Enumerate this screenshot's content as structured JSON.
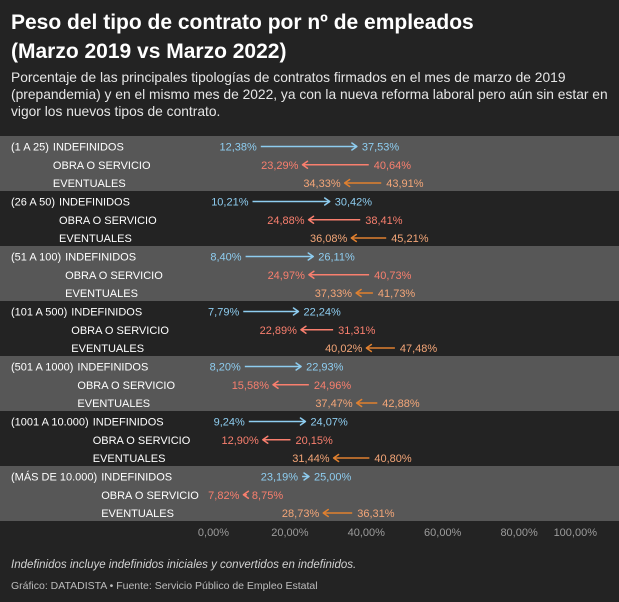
{
  "title": {
    "line1": "Peso del tipo de contrato por nº de empleados",
    "line2": "(Marzo 2019 vs Marzo 2022)"
  },
  "subtitle_lines": [
    "Porcentaje de las principales tipologías de contratos firmados en el mes de marzo de 2019",
    "(prepandemia) y en el mismo mes de 2022, ya con la nueva reforma laboral pero aún sin estar en",
    "vigor los nuevos tipos de contrato."
  ],
  "footnote": "Indefinidos incluye indefinidos iniciales y convertidos en indefinidos.",
  "source": "Gráfico: DATADISTA • Fuente: Servicio Público de Empleo Estatal",
  "colors": {
    "background": "#232323",
    "band": "#575757",
    "arrow": [
      "#8ecdf0",
      "#f97f6e",
      "#e0802f"
    ],
    "text": [
      "#8ecdf0",
      "#f97f6e",
      "#f4a678"
    ]
  },
  "chart_data": {
    "type": "scatter",
    "series": [
      "Marzo 2019",
      "Marzo 2022"
    ],
    "xlim": [
      0,
      100
    ],
    "x_ticks": [
      0,
      20,
      40,
      60,
      80,
      100
    ],
    "groups": [
      {
        "label": "(1 A 25)",
        "rows": [
          {
            "label": "INDEFINIDOS",
            "values": [
              12.38,
              37.53
            ]
          },
          {
            "label": "OBRA O SERVICIO",
            "values": [
              40.64,
              23.29
            ]
          },
          {
            "label": "EVENTUALES",
            "values": [
              43.91,
              34.33
            ]
          }
        ]
      },
      {
        "label": "(26 A 50)",
        "rows": [
          {
            "label": "INDEFINIDOS",
            "values": [
              10.21,
              30.42
            ]
          },
          {
            "label": "OBRA O SERVICIO",
            "values": [
              38.41,
              24.88
            ]
          },
          {
            "label": "EVENTUALES",
            "values": [
              45.21,
              36.08
            ]
          }
        ]
      },
      {
        "label": "(51 A 100)",
        "rows": [
          {
            "label": "INDEFINIDOS",
            "values": [
              8.4,
              26.11
            ]
          },
          {
            "label": "OBRA O SERVICIO",
            "values": [
              40.73,
              24.97
            ]
          },
          {
            "label": "EVENTUALES",
            "values": [
              41.73,
              37.33
            ]
          }
        ]
      },
      {
        "label": "(101 A 500)",
        "rows": [
          {
            "label": "INDEFINIDOS",
            "values": [
              7.79,
              22.24
            ]
          },
          {
            "label": "OBRA O SERVICIO",
            "values": [
              31.31,
              22.89
            ]
          },
          {
            "label": "EVENTUALES",
            "values": [
              47.48,
              40.02
            ]
          }
        ]
      },
      {
        "label": "(501 A 1000)",
        "rows": [
          {
            "label": "INDEFINIDOS",
            "values": [
              8.2,
              22.93
            ]
          },
          {
            "label": "OBRA O SERVICIO",
            "values": [
              24.96,
              15.58
            ]
          },
          {
            "label": "EVENTUALES",
            "values": [
              42.88,
              37.47
            ]
          }
        ]
      },
      {
        "label": "(1001 A 10.000)",
        "rows": [
          {
            "label": "INDEFINIDOS",
            "values": [
              9.24,
              24.07
            ]
          },
          {
            "label": "OBRA O SERVICIO",
            "values": [
              20.15,
              12.9
            ]
          },
          {
            "label": "EVENTUALES",
            "values": [
              40.8,
              31.44
            ]
          }
        ]
      },
      {
        "label": "(MÁS DE 10.000)",
        "rows": [
          {
            "label": "INDEFINIDOS",
            "values": [
              23.19,
              25.0
            ]
          },
          {
            "label": "OBRA O SERVICIO",
            "values": [
              8.75,
              7.82
            ]
          },
          {
            "label": "EVENTUALES",
            "values": [
              36.31,
              28.73
            ]
          }
        ]
      }
    ]
  }
}
